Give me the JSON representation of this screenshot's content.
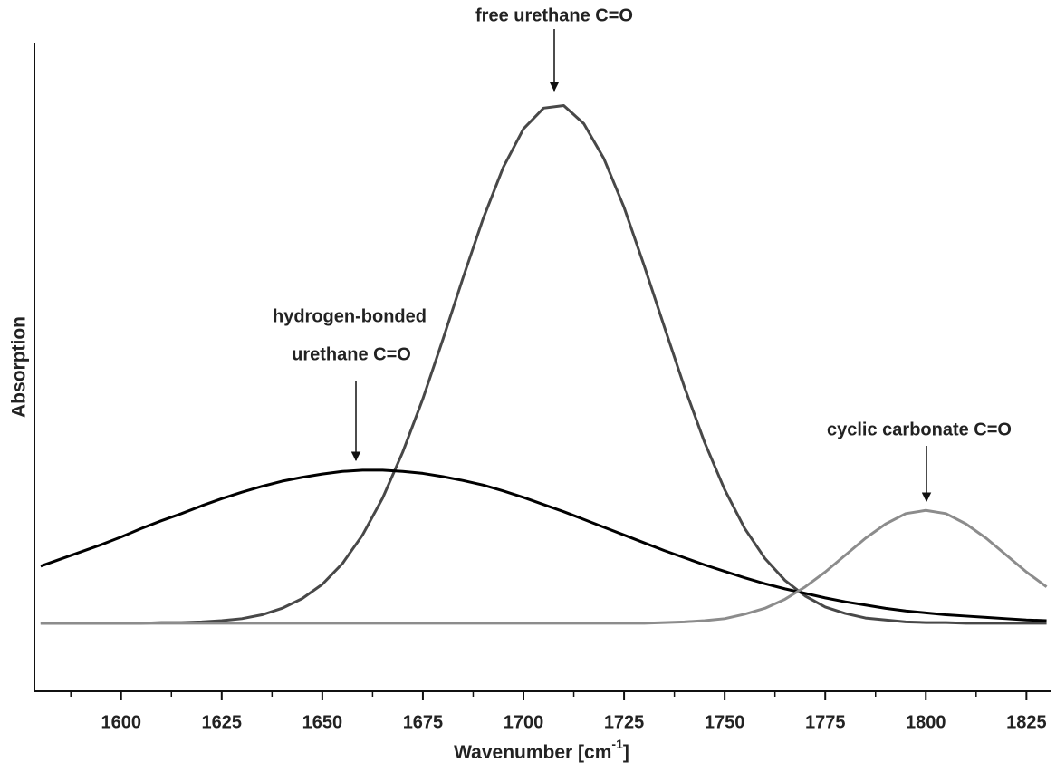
{
  "chart_data": {
    "type": "line",
    "xlabel": [
      "Wavenumber [cm",
      "-1",
      "]"
    ],
    "ylabel": "Absorption",
    "annotations": [
      [
        "free urethane C=O"
      ],
      [
        "hydrogen-bonded",
        "urethane C=O"
      ],
      [
        "cyclic carbonate C=O"
      ]
    ],
    "x": [
      1580,
      1585,
      1590,
      1595,
      1600,
      1605,
      1610,
      1615,
      1620,
      1625,
      1630,
      1635,
      1640,
      1645,
      1650,
      1655,
      1660,
      1665,
      1670,
      1675,
      1680,
      1685,
      1690,
      1695,
      1700,
      1705,
      1710,
      1715,
      1720,
      1725,
      1730,
      1735,
      1740,
      1745,
      1750,
      1755,
      1760,
      1765,
      1770,
      1775,
      1780,
      1785,
      1790,
      1795,
      1800,
      1805,
      1810,
      1815,
      1820,
      1825,
      1830
    ],
    "series": [
      {
        "color": "#484848",
        "values": [
          10.5,
          10.5,
          10.5,
          10.5,
          10.5,
          10.5,
          10.6,
          10.6,
          10.7,
          10.9,
          11.2,
          11.8,
          12.8,
          14.3,
          16.5,
          19.7,
          24.1,
          29.8,
          36.9,
          45.1,
          54.3,
          63.8,
          72.9,
          80.8,
          86.7,
          89.9,
          90.3,
          87.5,
          82.1,
          74.6,
          65.6,
          56.2,
          46.9,
          38.4,
          31.1,
          25.1,
          20.5,
          17.1,
          14.7,
          13.0,
          12.0,
          11.3,
          11.0,
          10.7,
          10.6,
          10.6,
          10.5,
          10.5,
          10.5,
          10.5,
          10.5
        ]
      },
      {
        "color": "#000000",
        "values": [
          19.3,
          20.4,
          21.5,
          22.6,
          23.8,
          25.1,
          26.3,
          27.4,
          28.6,
          29.7,
          30.7,
          31.6,
          32.4,
          33.0,
          33.5,
          33.9,
          34.1,
          34.1,
          33.9,
          33.6,
          33.1,
          32.5,
          31.8,
          30.9,
          29.9,
          28.8,
          27.7,
          26.5,
          25.3,
          24.1,
          22.9,
          21.7,
          20.6,
          19.5,
          18.5,
          17.5,
          16.6,
          15.8,
          15.1,
          14.4,
          13.8,
          13.3,
          12.8,
          12.4,
          12.1,
          11.8,
          11.6,
          11.4,
          11.2,
          11.0,
          10.9
        ]
      },
      {
        "color": "#8c8c8c",
        "values": [
          10.5,
          10.5,
          10.5,
          10.5,
          10.5,
          10.5,
          10.5,
          10.5,
          10.5,
          10.5,
          10.5,
          10.5,
          10.5,
          10.5,
          10.5,
          10.5,
          10.5,
          10.5,
          10.5,
          10.5,
          10.5,
          10.5,
          10.5,
          10.5,
          10.5,
          10.5,
          10.5,
          10.5,
          10.5,
          10.5,
          10.5,
          10.6,
          10.7,
          10.9,
          11.2,
          11.9,
          12.8,
          14.2,
          16.1,
          18.4,
          21.0,
          23.6,
          25.8,
          27.4,
          27.9,
          27.4,
          25.8,
          23.6,
          21.0,
          18.4,
          16.1
        ]
      }
    ],
    "xlim": [
      1578,
      1831
    ],
    "ylim": [
      0,
      100
    ],
    "xticks": [
      1600,
      1625,
      1650,
      1675,
      1700,
      1725,
      1750,
      1775,
      1800,
      1825
    ],
    "xminorticks": [
      1587.5,
      1612.5,
      1637.5,
      1662.5,
      1687.5,
      1712.5,
      1737.5,
      1762.5,
      1787.5,
      1812.5
    ],
    "grid": false
  }
}
